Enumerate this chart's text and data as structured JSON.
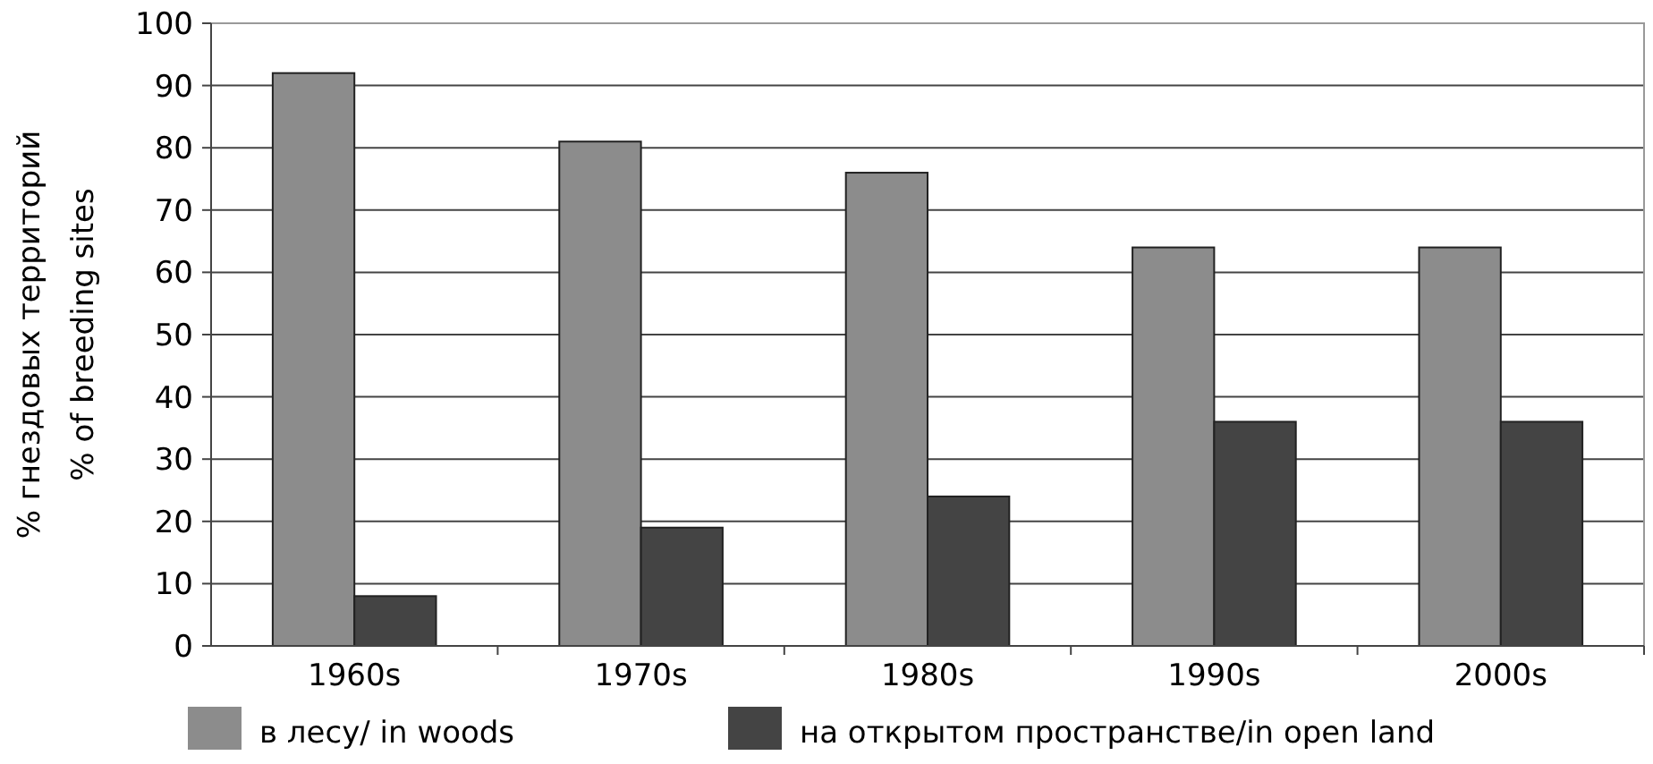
{
  "chart_data": {
    "type": "bar",
    "ylabel": "% гнездовых территорий\n% of breeding sites",
    "categories": [
      "1960s",
      "1970s",
      "1980s",
      "1990s",
      "2000s"
    ],
    "series": [
      {
        "name": "в лесу/ in woods",
        "color": "#8c8c8c",
        "values": [
          92,
          81,
          76,
          64,
          64
        ]
      },
      {
        "name": "на открытом пространстве/in open land",
        "color": "#444444",
        "values": [
          8,
          19,
          24,
          36,
          36
        ]
      }
    ],
    "ylim": [
      0,
      100
    ],
    "yticks": [
      0,
      10,
      20,
      30,
      40,
      50,
      60,
      70,
      80,
      90,
      100
    ],
    "grid": "y",
    "legend": "bottom"
  }
}
